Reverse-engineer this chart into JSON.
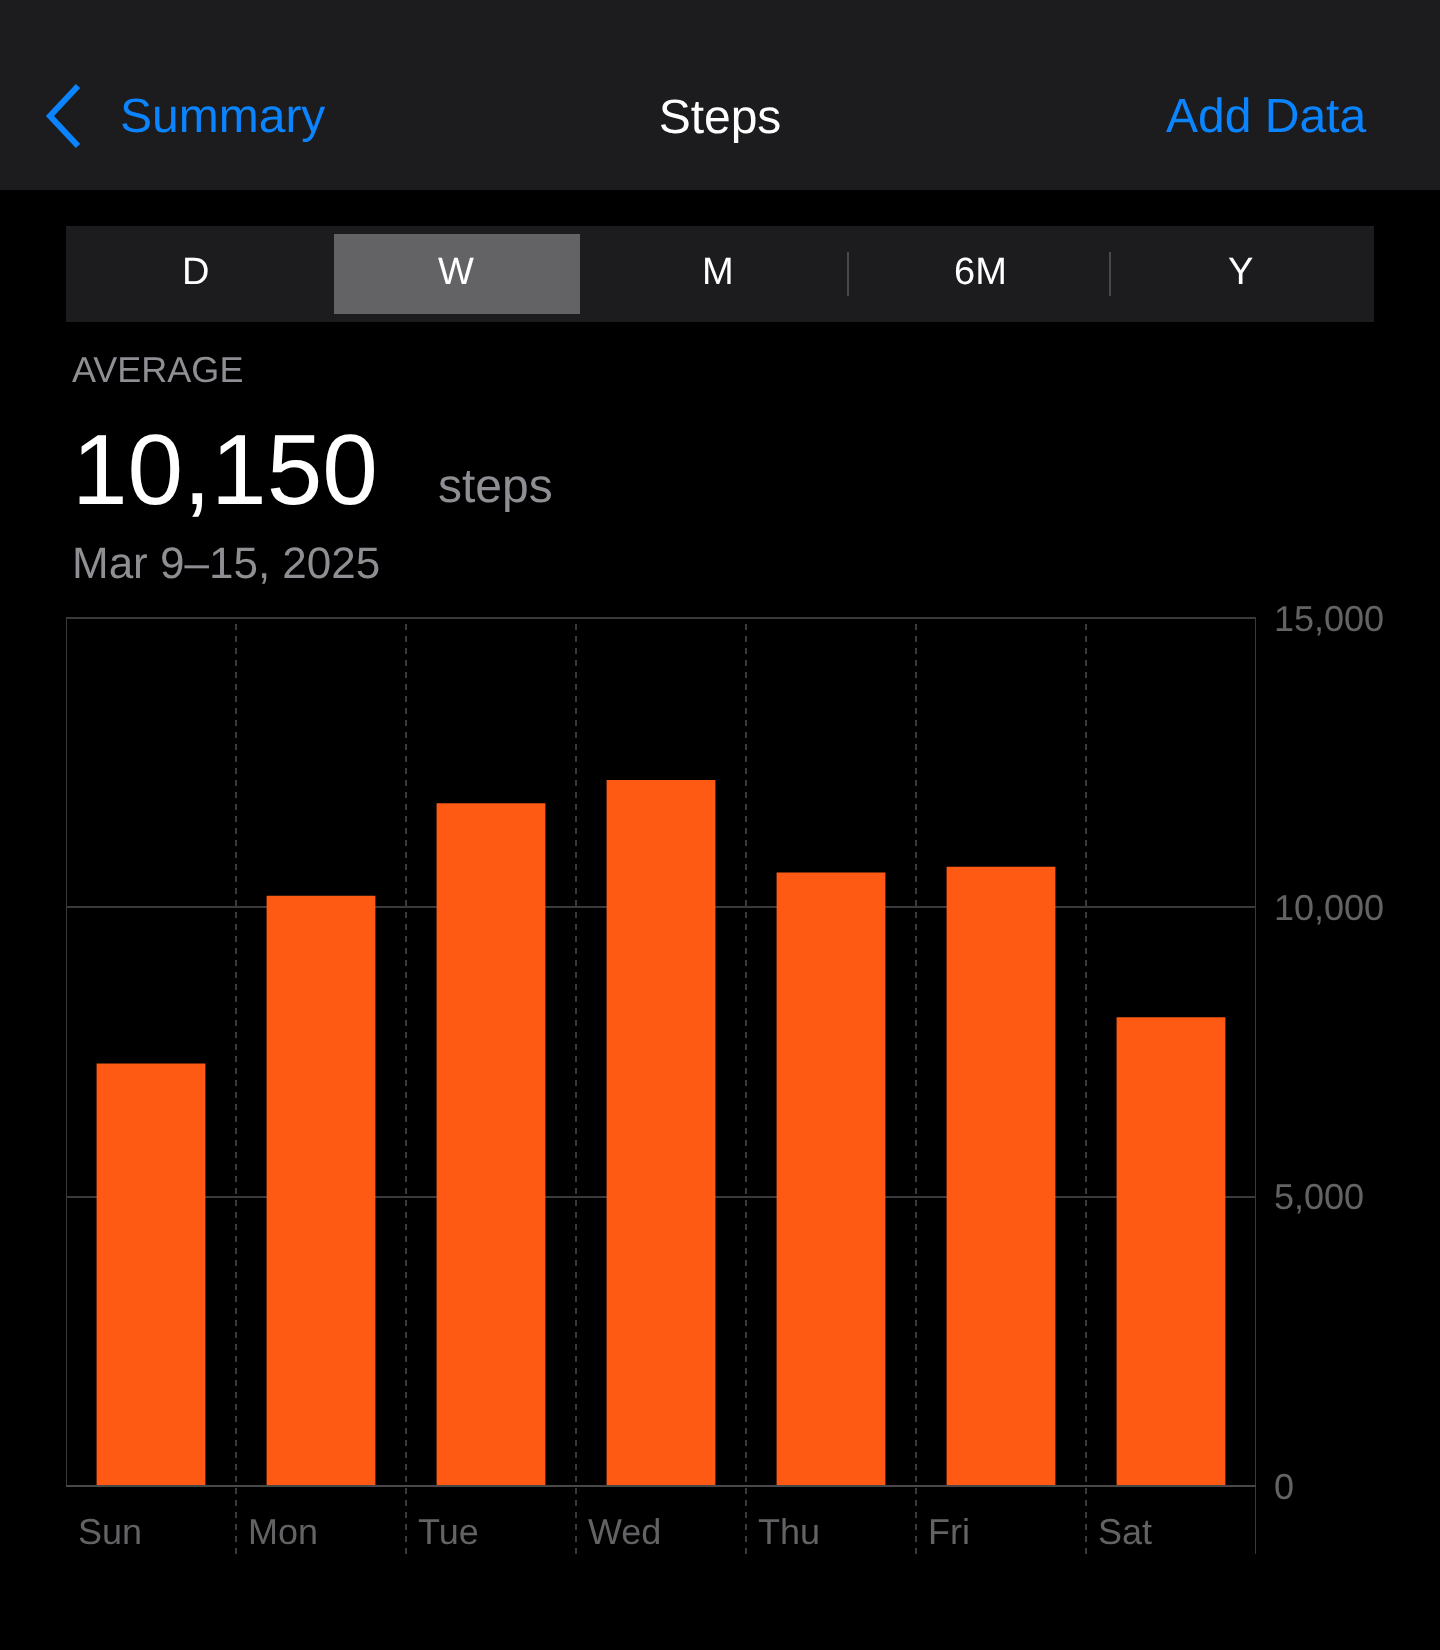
{
  "chart_data": {
    "type": "bar",
    "title": "Steps",
    "subtitle": "Mar 9–15, 2025",
    "annotations": [
      "Summary",
      "Add Data",
      "D",
      "W",
      "M",
      "6M",
      "Y",
      "AVERAGE",
      "10,150",
      "steps"
    ],
    "categories": [
      "Sun",
      "Mon",
      "Tue",
      "Wed",
      "Thu",
      "Fri",
      "Sat"
    ],
    "values": [
      7300,
      10200,
      11800,
      12200,
      10600,
      10700,
      8100
    ],
    "color": "#ff5a14",
    "ylim": [
      0,
      15000
    ],
    "yticks": [
      {
        "value": 0,
        "label": "0"
      },
      {
        "value": 5000,
        "label": "5,000"
      },
      {
        "value": 10000,
        "label": "10,000"
      },
      {
        "value": 15000,
        "label": "15,000"
      }
    ],
    "grid": true
  }
}
